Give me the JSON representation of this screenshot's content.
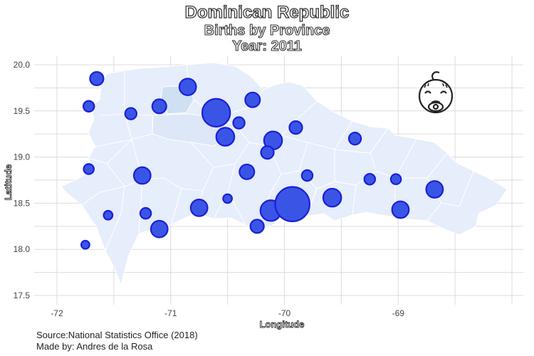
{
  "title": "Dominican Republic",
  "subtitle": "Births by Province",
  "year_label": "Year: 2011",
  "axes": {
    "x_label": "Longitude",
    "y_label": "Latitude",
    "x_ticks": [
      "-72",
      "-71",
      "-70",
      "-69"
    ],
    "y_ticks": [
      "20.0",
      "19.5",
      "19.0",
      "18.5",
      "18.0",
      "17.5"
    ]
  },
  "caption": {
    "source": "Source:National Statistics Office (2018)",
    "author": "Made by: Andres de la Rosa"
  },
  "icon": "baby-face-icon",
  "colors": {
    "bubble_fill": "#3a55e6",
    "bubble_stroke": "#1a1fd8",
    "land": "#e6edfb",
    "land_dark": "#d0dff3",
    "border": "#ffffff"
  },
  "chart_data": {
    "type": "scatter",
    "xlim": [
      -72.2,
      -67.9
    ],
    "ylim": [
      17.4,
      20.1
    ],
    "grid": true,
    "points": [
      {
        "lon": -71.65,
        "lat": 19.85,
        "size": 1.3
      },
      {
        "lon": -71.72,
        "lat": 19.55,
        "size": 0.9
      },
      {
        "lon": -71.35,
        "lat": 19.47,
        "size": 1.0
      },
      {
        "lon": -71.1,
        "lat": 19.55,
        "size": 1.4
      },
      {
        "lon": -70.85,
        "lat": 19.76,
        "size": 1.8
      },
      {
        "lon": -70.6,
        "lat": 19.48,
        "size": 3.5
      },
      {
        "lon": -70.52,
        "lat": 19.22,
        "size": 2.0
      },
      {
        "lon": -70.4,
        "lat": 19.37,
        "size": 1.0
      },
      {
        "lon": -70.28,
        "lat": 19.62,
        "size": 1.5
      },
      {
        "lon": -70.1,
        "lat": 19.18,
        "size": 2.0
      },
      {
        "lon": -69.9,
        "lat": 19.32,
        "size": 1.2
      },
      {
        "lon": -70.15,
        "lat": 19.05,
        "size": 1.2
      },
      {
        "lon": -69.38,
        "lat": 19.2,
        "size": 1.1
      },
      {
        "lon": -71.72,
        "lat": 18.87,
        "size": 0.8
      },
      {
        "lon": -71.25,
        "lat": 18.8,
        "size": 1.8
      },
      {
        "lon": -70.33,
        "lat": 18.84,
        "size": 1.5
      },
      {
        "lon": -69.8,
        "lat": 18.8,
        "size": 0.9
      },
      {
        "lon": -69.25,
        "lat": 18.76,
        "size": 0.9
      },
      {
        "lon": -69.02,
        "lat": 18.76,
        "size": 0.8
      },
      {
        "lon": -70.5,
        "lat": 18.55,
        "size": 0.6
      },
      {
        "lon": -69.58,
        "lat": 18.56,
        "size": 2.0
      },
      {
        "lon": -68.68,
        "lat": 18.65,
        "size": 1.8
      },
      {
        "lon": -71.55,
        "lat": 18.37,
        "size": 0.6
      },
      {
        "lon": -71.22,
        "lat": 18.39,
        "size": 0.9
      },
      {
        "lon": -70.75,
        "lat": 18.45,
        "size": 1.8
      },
      {
        "lon": -70.12,
        "lat": 18.42,
        "size": 2.4
      },
      {
        "lon": -69.93,
        "lat": 18.49,
        "size": 4.5
      },
      {
        "lon": -68.98,
        "lat": 18.43,
        "size": 1.8
      },
      {
        "lon": -71.1,
        "lat": 18.22,
        "size": 1.8
      },
      {
        "lon": -70.24,
        "lat": 18.25,
        "size": 1.3
      },
      {
        "lon": -71.75,
        "lat": 18.05,
        "size": 0.5
      }
    ]
  }
}
